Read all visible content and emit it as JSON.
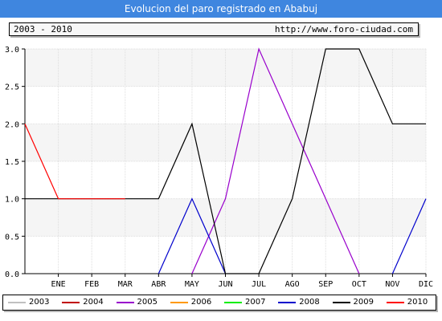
{
  "header": {
    "title": "Evolucion del paro registrado en Ababuj",
    "period": "2003 - 2010",
    "url": "http://www.foro-ciudad.com"
  },
  "chart_data": {
    "type": "line",
    "title": "Evolucion del paro registrado en Ababuj",
    "xlabel": "",
    "ylabel": "",
    "x_ticks": [
      "",
      "ENE",
      "FEB",
      "MAR",
      "ABR",
      "MAY",
      "JUN",
      "JUL",
      "AGO",
      "SEP",
      "OCT",
      "NOV",
      "DIC"
    ],
    "y_ticks": [
      "0.0",
      "0.5",
      "1.0",
      "1.5",
      "2.0",
      "2.5",
      "3.0"
    ],
    "ylim": [
      0,
      3
    ],
    "grid": true,
    "legend_position": "bottom",
    "series": [
      {
        "name": "2003",
        "color": "#c0c0c0",
        "values": []
      },
      {
        "name": "2004",
        "color": "#c00000",
        "values": []
      },
      {
        "name": "2005",
        "color": "#9900cc",
        "values": [
          null,
          null,
          null,
          null,
          null,
          0,
          1,
          3,
          2,
          1,
          0,
          null,
          null
        ]
      },
      {
        "name": "2006",
        "color": "#ff9900",
        "values": []
      },
      {
        "name": "2007",
        "color": "#00ee00",
        "values": []
      },
      {
        "name": "2008",
        "color": "#0000cc",
        "values": [
          null,
          null,
          null,
          null,
          0,
          1,
          0,
          null,
          null,
          null,
          null,
          0,
          1
        ]
      },
      {
        "name": "2009",
        "color": "#000000",
        "values": [
          1,
          1,
          1,
          1,
          1,
          2,
          0,
          0,
          1,
          3,
          3,
          2,
          2
        ]
      },
      {
        "name": "2010",
        "color": "#ff0000",
        "values": [
          2,
          1,
          1,
          1,
          null,
          null,
          null,
          null,
          null,
          null,
          null,
          null,
          null
        ]
      }
    ]
  }
}
